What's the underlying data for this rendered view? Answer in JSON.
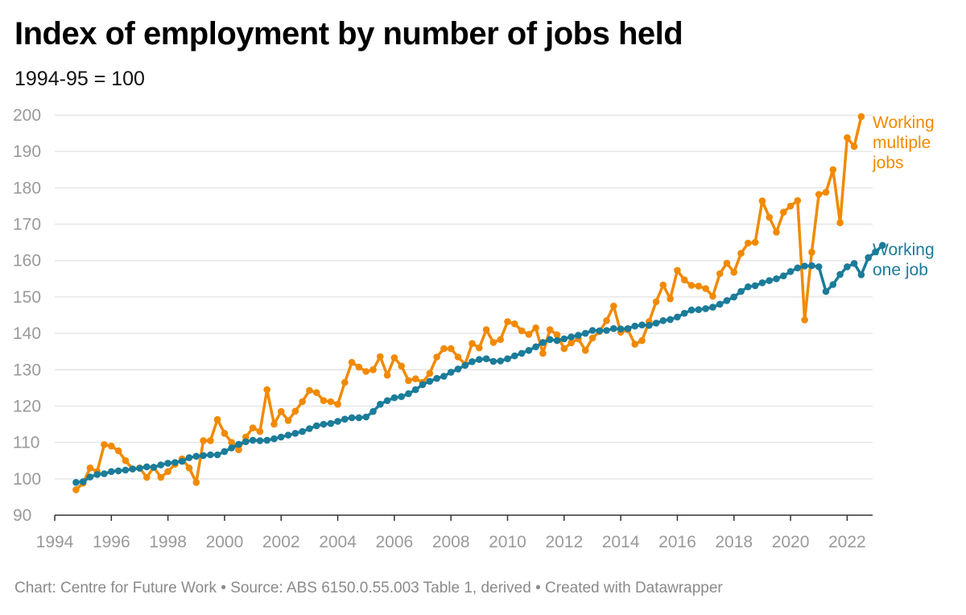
{
  "title": "Index of employment by number of jobs held",
  "subtitle": "1994-95 = 100",
  "footer": {
    "chart_prefix": "Chart: ",
    "chart_credit": "Centre for Future Work",
    "source_prefix": "Source: ",
    "source": "ABS 6150.0.55.003 Table 1, derived",
    "created": "Created with Datawrapper",
    "separator": " • "
  },
  "colors": {
    "multiple": "#f18a00",
    "one": "#1b7c99",
    "grid": "#e6e6e6",
    "axis": "#333333",
    "tick_text": "#9a9a9a"
  },
  "chart_data": {
    "type": "line",
    "title": "Index of employment by number of jobs held",
    "subtitle": "1994-95 = 100",
    "xlabel": "",
    "ylabel": "",
    "xlim": [
      1994,
      2022.9
    ],
    "ylim": [
      90,
      200
    ],
    "grid": true,
    "legend": "labels at right end of lines",
    "x_ticks": [
      "1994",
      "1996",
      "1998",
      "2000",
      "2002",
      "2004",
      "2006",
      "2008",
      "2010",
      "2012",
      "2014",
      "2016",
      "2018",
      "2020",
      "2022"
    ],
    "y_ticks": [
      "90",
      "100",
      "110",
      "120",
      "130",
      "140",
      "150",
      "160",
      "170",
      "180",
      "190",
      "200"
    ],
    "series": [
      {
        "name": "Working multiple jobs",
        "label_lines": [
          "Working",
          "multiple",
          "jobs"
        ],
        "color": "#f18a00",
        "x_start": 1994.75,
        "x_step": 0.25,
        "values": [
          97,
          98.8,
          103,
          102,
          109.4,
          109,
          107.7,
          105,
          102.7,
          103,
          100.4,
          103.2,
          100.4,
          102,
          104,
          105.5,
          103,
          99,
          110.5,
          110.5,
          116.3,
          112.5,
          110,
          108,
          111.5,
          114,
          113,
          124.5,
          115,
          118.5,
          116,
          118.6,
          121.2,
          124.3,
          123.7,
          121.5,
          121.2,
          120.5,
          126.5,
          132,
          130.7,
          129.5,
          130,
          133.6,
          128.5,
          133.3,
          131,
          127,
          127.5,
          126.5,
          129,
          133.5,
          135.8,
          135.8,
          133.5,
          131.5,
          137.2,
          136,
          141,
          137.5,
          138.3,
          143.2,
          142.6,
          140.7,
          139.7,
          141.5,
          134.5,
          141,
          139.6,
          135.8,
          137.4,
          138.5,
          135.3,
          138.7,
          140.5,
          143.5,
          147.5,
          140.3,
          141,
          137,
          138,
          143.2,
          148.7,
          153.3,
          149.5,
          157.3,
          154.7,
          153.2,
          153,
          152.3,
          150.2,
          156.4,
          159.3,
          156.8,
          162,
          164.8,
          165,
          176.4,
          171.9,
          167.8,
          173.3,
          175,
          176.5,
          143.7,
          162.3,
          178.2,
          178.8,
          185,
          170.4,
          193.8,
          191.4,
          199.6
        ]
      },
      {
        "name": "Working one job",
        "label_lines": [
          "Working",
          "one job"
        ],
        "color": "#1b7c99",
        "x_start": 1994.75,
        "x_step": 0.25,
        "values": [
          99,
          99.2,
          100.5,
          101.2,
          101.4,
          102,
          102.2,
          102.4,
          102.7,
          102.9,
          103.3,
          103.2,
          103.8,
          104.3,
          104.5,
          104.8,
          105.8,
          106.2,
          106.4,
          106.6,
          106.6,
          107.5,
          108.5,
          109.5,
          110.2,
          110.6,
          110.5,
          110.6,
          111,
          111.5,
          112,
          112.5,
          113,
          113.8,
          114.6,
          115,
          115.2,
          115.8,
          116.4,
          116.8,
          116.8,
          117,
          118.5,
          120.5,
          121.5,
          122.3,
          122.6,
          123.4,
          124.5,
          125.9,
          126.8,
          127.6,
          128.2,
          129.3,
          130.2,
          131.2,
          132.2,
          132.8,
          133,
          132.3,
          132.4,
          133,
          133.8,
          134.5,
          135.3,
          136.3,
          137.5,
          138.3,
          138,
          138.5,
          139,
          139.5,
          140,
          140.8,
          140.7,
          140.8,
          141.3,
          141.2,
          141.3,
          142,
          142.3,
          142.2,
          142.8,
          143.5,
          143.8,
          144.5,
          145.5,
          146.4,
          146.5,
          146.8,
          147.2,
          148,
          149,
          150,
          151.5,
          152.8,
          153.1,
          153.9,
          154.5,
          155,
          155.8,
          157,
          158,
          158.5,
          158.6,
          158.3,
          151.5,
          153.4,
          156.2,
          158.3,
          159.2,
          156.1,
          160.8,
          162.4,
          164.2
        ]
      }
    ]
  }
}
